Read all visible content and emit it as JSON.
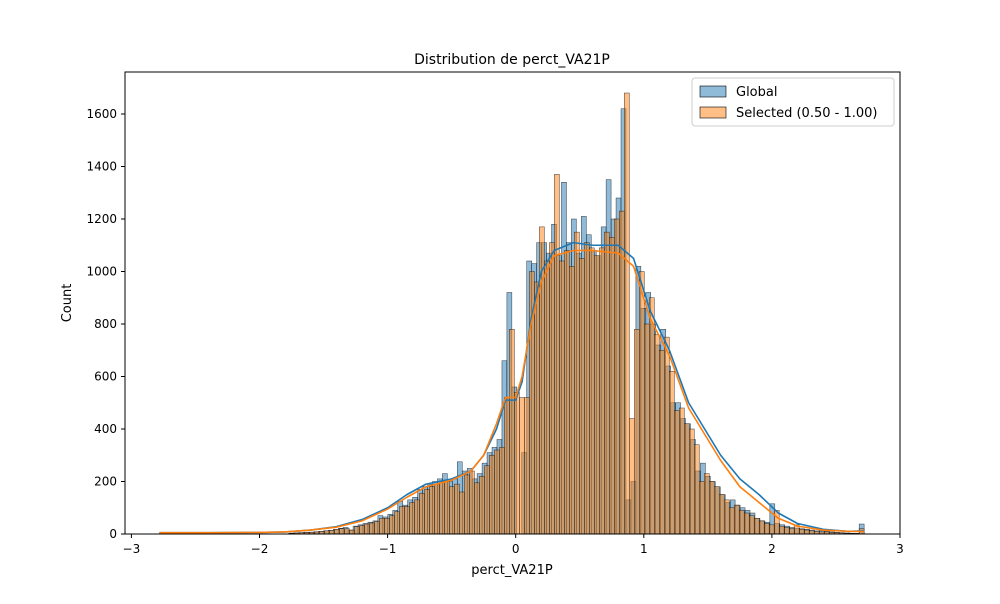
{
  "chart_data": {
    "type": "bar",
    "title": "Distribution de perct_VA21P",
    "xlabel": "perct_VA21P",
    "ylabel": "Count",
    "xlim": [
      -3.05,
      3.0
    ],
    "ylim": [
      0,
      1760
    ],
    "x_ticks": [
      -3,
      -2,
      -1,
      0,
      1,
      2,
      3
    ],
    "y_ticks": [
      0,
      200,
      400,
      600,
      800,
      1000,
      1200,
      1400,
      1600
    ],
    "grid": false,
    "legend_position": "top-right",
    "bin_range": [
      -2.78,
      2.72
    ],
    "series": [
      {
        "name": "Global",
        "color": "#1f77b4",
        "values": [
          5,
          0,
          0,
          0,
          0,
          0,
          0,
          0,
          0,
          0,
          0,
          0,
          0,
          0,
          0,
          0,
          0,
          0,
          0,
          0,
          0,
          0,
          0,
          0,
          0,
          0,
          3,
          4,
          5,
          6,
          7,
          8,
          10,
          12,
          14,
          18,
          22,
          25,
          15,
          30,
          35,
          40,
          45,
          50,
          70,
          65,
          75,
          90,
          125,
          110,
          130,
          140,
          170,
          180,
          190,
          200,
          210,
          230,
          200,
          210,
          275,
          240,
          250,
          210,
          230,
          270,
          310,
          330,
          360,
          660,
          920,
          560,
          0,
          310,
          1040,
          1030,
          1110,
          1110,
          1070,
          1180,
          1060,
          1340,
          1110,
          1200,
          1070,
          1210,
          1140,
          1080,
          1060,
          1170,
          1350,
          1200,
          1280,
          1620,
          130,
          200,
          1020,
          860,
          920,
          800,
          720,
          780,
          640,
          500,
          500,
          440,
          420,
          360,
          240,
          270,
          220,
          200,
          180,
          150,
          120,
          130,
          110,
          100,
          90,
          80,
          60,
          50,
          45,
          115,
          40,
          35,
          30,
          25,
          22,
          20,
          18,
          15,
          12,
          12,
          10,
          8,
          6,
          5,
          4,
          3,
          3,
          38
        ],
        "kde": [
          [
            -2.78,
            5
          ],
          [
            -2.4,
            5
          ],
          [
            -2.0,
            6
          ],
          [
            -1.8,
            8
          ],
          [
            -1.6,
            15
          ],
          [
            -1.4,
            28
          ],
          [
            -1.2,
            55
          ],
          [
            -1.0,
            100
          ],
          [
            -0.85,
            150
          ],
          [
            -0.7,
            190
          ],
          [
            -0.5,
            210
          ],
          [
            -0.35,
            240
          ],
          [
            -0.25,
            300
          ],
          [
            -0.15,
            400
          ],
          [
            -0.08,
            510
          ],
          [
            0.0,
            510
          ],
          [
            0.05,
            580
          ],
          [
            0.12,
            820
          ],
          [
            0.2,
            1000
          ],
          [
            0.3,
            1080
          ],
          [
            0.45,
            1110
          ],
          [
            0.6,
            1100
          ],
          [
            0.8,
            1100
          ],
          [
            0.92,
            1050
          ],
          [
            1.05,
            850
          ],
          [
            1.2,
            700
          ],
          [
            1.35,
            500
          ],
          [
            1.5,
            380
          ],
          [
            1.6,
            300
          ],
          [
            1.75,
            210
          ],
          [
            1.9,
            150
          ],
          [
            2.05,
            80
          ],
          [
            2.2,
            40
          ],
          [
            2.4,
            18
          ],
          [
            2.6,
            10
          ],
          [
            2.72,
            12
          ]
        ]
      },
      {
        "name": "Selected (0.50 - 1.00)",
        "color": "#ff7f0e",
        "values": [
          5,
          0,
          0,
          0,
          0,
          0,
          0,
          0,
          0,
          0,
          0,
          0,
          0,
          0,
          0,
          0,
          0,
          0,
          0,
          0,
          0,
          0,
          0,
          0,
          0,
          0,
          3,
          4,
          5,
          6,
          7,
          8,
          10,
          12,
          14,
          18,
          20,
          20,
          15,
          28,
          32,
          38,
          42,
          48,
          60,
          60,
          70,
          85,
          105,
          105,
          120,
          130,
          155,
          170,
          180,
          190,
          200,
          200,
          180,
          190,
          160,
          225,
          240,
          195,
          220,
          260,
          300,
          320,
          330,
          520,
          780,
          540,
          520,
          520,
          1000,
          960,
          1170,
          1040,
          1110,
          1370,
          1040,
          1080,
          1020,
          1150,
          1050,
          1110,
          1090,
          1060,
          1090,
          1150,
          1130,
          1200,
          1230,
          1680,
          440,
          780,
          1000,
          800,
          900,
          760,
          700,
          750,
          620,
          470,
          480,
          420,
          400,
          340,
          200,
          230,
          200,
          180,
          150,
          130,
          100,
          110,
          90,
          80,
          70,
          60,
          50,
          40,
          35,
          90,
          30,
          25,
          20,
          35,
          18,
          15,
          12,
          10,
          8,
          8,
          6,
          5,
          4,
          3,
          3,
          2,
          20
        ],
        "kde": [
          [
            -2.78,
            5
          ],
          [
            -2.4,
            5
          ],
          [
            -2.0,
            6
          ],
          [
            -1.8,
            8
          ],
          [
            -1.6,
            15
          ],
          [
            -1.4,
            26
          ],
          [
            -1.2,
            50
          ],
          [
            -1.0,
            95
          ],
          [
            -0.85,
            140
          ],
          [
            -0.7,
            180
          ],
          [
            -0.5,
            205
          ],
          [
            -0.35,
            240
          ],
          [
            -0.25,
            300
          ],
          [
            -0.15,
            420
          ],
          [
            -0.08,
            520
          ],
          [
            0.0,
            520
          ],
          [
            0.05,
            600
          ],
          [
            0.12,
            800
          ],
          [
            0.2,
            960
          ],
          [
            0.3,
            1060
          ],
          [
            0.45,
            1080
          ],
          [
            0.6,
            1080
          ],
          [
            0.8,
            1070
          ],
          [
            0.92,
            1020
          ],
          [
            1.05,
            820
          ],
          [
            1.2,
            680
          ],
          [
            1.35,
            480
          ],
          [
            1.5,
            360
          ],
          [
            1.6,
            280
          ],
          [
            1.75,
            180
          ],
          [
            1.9,
            120
          ],
          [
            2.05,
            60
          ],
          [
            2.2,
            30
          ],
          [
            2.4,
            15
          ],
          [
            2.6,
            10
          ],
          [
            2.72,
            10
          ]
        ]
      }
    ]
  }
}
